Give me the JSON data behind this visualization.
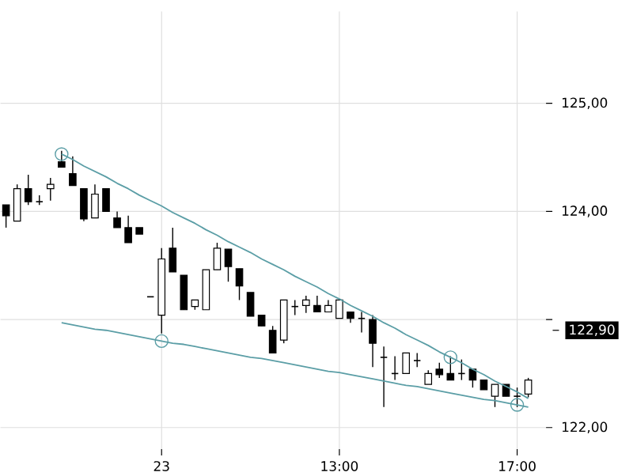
{
  "chart_data": {
    "type": "candlestick",
    "categories": [
      null,
      null,
      null,
      null,
      null,
      null,
      null,
      null,
      null,
      null,
      null,
      null,
      null,
      null,
      "23",
      null,
      null,
      null,
      null,
      null,
      null,
      null,
      null,
      null,
      null,
      null,
      null,
      null,
      null,
      null,
      "13:00",
      null,
      null,
      null,
      null,
      null,
      null,
      null,
      null,
      null,
      null,
      null,
      null,
      null,
      null,
      null,
      "17:00",
      null
    ],
    "series": [
      {
        "color": "#000000",
        "ohlc": [
          [
            124.06,
            124.06,
            123.85,
            123.96
          ],
          [
            123.91,
            124.25,
            123.91,
            124.21
          ],
          [
            124.21,
            124.34,
            124.06,
            124.09
          ],
          [
            124.09,
            124.15,
            124.06,
            124.09
          ],
          [
            124.21,
            124.31,
            124.1,
            124.25
          ],
          [
            124.46,
            124.56,
            124.41,
            124.41
          ],
          [
            124.35,
            124.51,
            124.24,
            124.24
          ],
          [
            124.21,
            124.21,
            123.91,
            123.93
          ],
          [
            123.94,
            124.25,
            123.94,
            124.16
          ],
          [
            124.21,
            124.21,
            124.0,
            124.0
          ],
          [
            123.94,
            124.0,
            123.85,
            123.85
          ],
          [
            123.85,
            123.96,
            123.71,
            123.71
          ],
          [
            123.85,
            123.85,
            123.79,
            123.79
          ],
          [
            123.21,
            123.21,
            123.21,
            123.21
          ],
          [
            123.04,
            123.66,
            122.87,
            123.56
          ],
          [
            123.66,
            123.85,
            123.44,
            123.44
          ],
          [
            123.41,
            123.41,
            123.09,
            123.09
          ],
          [
            123.12,
            123.18,
            123.09,
            123.18
          ],
          [
            123.09,
            123.46,
            123.09,
            123.46
          ],
          [
            123.46,
            123.71,
            123.46,
            123.66
          ],
          [
            123.65,
            123.65,
            123.35,
            123.49
          ],
          [
            123.47,
            123.47,
            123.18,
            123.31
          ],
          [
            123.25,
            123.25,
            123.03,
            123.03
          ],
          [
            123.04,
            123.04,
            122.94,
            122.94
          ],
          [
            122.9,
            122.94,
            122.69,
            122.69
          ],
          [
            122.81,
            123.18,
            122.78,
            123.18
          ],
          [
            123.12,
            123.18,
            123.04,
            123.12
          ],
          [
            123.13,
            123.22,
            123.06,
            123.18
          ],
          [
            123.13,
            123.22,
            123.07,
            123.07
          ],
          [
            123.07,
            123.18,
            123.07,
            123.13
          ],
          [
            123.01,
            123.18,
            123.01,
            123.18
          ],
          [
            123.07,
            123.07,
            122.97,
            123.01
          ],
          [
            123.01,
            123.07,
            122.88,
            123.01
          ],
          [
            123.0,
            123.04,
            122.56,
            122.78
          ],
          [
            122.65,
            122.75,
            122.19,
            122.65
          ],
          [
            122.5,
            122.66,
            122.44,
            122.5
          ],
          [
            122.5,
            122.69,
            122.5,
            122.69
          ],
          [
            122.62,
            122.69,
            122.56,
            122.62
          ],
          [
            122.4,
            122.53,
            122.4,
            122.5
          ],
          [
            122.54,
            122.6,
            122.46,
            122.49
          ],
          [
            122.5,
            122.66,
            122.44,
            122.44
          ],
          [
            122.5,
            122.63,
            122.44,
            122.5
          ],
          [
            122.54,
            122.54,
            122.37,
            122.44
          ],
          [
            122.44,
            122.44,
            122.35,
            122.35
          ],
          [
            122.29,
            122.4,
            122.19,
            122.4
          ],
          [
            122.4,
            122.4,
            122.29,
            122.29
          ],
          [
            122.29,
            122.37,
            122.19,
            122.29
          ],
          [
            122.31,
            122.46,
            122.28,
            122.44
          ]
        ]
      },
      {
        "type": "line",
        "color": "#5b9ea6",
        "values": [
          null,
          null,
          null,
          null,
          null,
          124.53,
          124.48,
          124.42,
          124.37,
          124.32,
          124.26,
          124.21,
          124.15,
          124.1,
          124.05,
          123.99,
          123.94,
          123.89,
          123.83,
          123.78,
          123.72,
          123.67,
          123.62,
          123.56,
          123.51,
          123.46,
          123.4,
          123.35,
          123.3,
          123.24,
          123.19,
          123.13,
          123.08,
          123.03,
          122.97,
          122.92,
          122.86,
          122.81,
          122.76,
          122.7,
          122.65,
          122.6,
          122.54,
          122.49,
          122.43,
          122.38,
          122.33,
          122.27
        ]
      },
      {
        "type": "line",
        "color": "#5b9ea6",
        "values": [
          null,
          null,
          null,
          null,
          null,
          122.97,
          122.95,
          122.93,
          122.91,
          122.9,
          122.88,
          122.86,
          122.84,
          122.82,
          122.8,
          122.78,
          122.77,
          122.75,
          122.73,
          122.71,
          122.69,
          122.67,
          122.65,
          122.64,
          122.62,
          122.6,
          122.58,
          122.56,
          122.54,
          122.52,
          122.51,
          122.49,
          122.47,
          122.45,
          122.43,
          122.41,
          122.39,
          122.38,
          122.36,
          122.34,
          122.32,
          122.3,
          122.28,
          122.26,
          122.25,
          122.23,
          122.21,
          122.19
        ]
      },
      {
        "type": "scatter",
        "color": "#5b9ea6",
        "marker": "circle",
        "values": [
          null,
          null,
          null,
          null,
          null,
          124.53,
          null,
          null,
          null,
          null,
          null,
          null,
          null,
          null,
          122.8,
          null,
          null,
          null,
          null,
          null,
          null,
          null,
          null,
          null,
          null,
          null,
          null,
          null,
          null,
          null,
          null,
          null,
          null,
          null,
          null,
          null,
          null,
          null,
          null,
          null,
          122.65,
          null,
          null,
          null,
          null,
          null,
          122.21,
          null
        ]
      }
    ],
    "ylim": [
      121.8,
      125.85
    ],
    "yticks": [
      {
        "value": 122,
        "label": "122,00"
      },
      {
        "value": 123,
        "label": null
      },
      {
        "value": 124,
        "label": "124,00"
      },
      {
        "value": 125,
        "label": "125,00"
      }
    ],
    "ref_lines": [
      {
        "axis": "y",
        "value": 122.9,
        "label": "122,90",
        "color": "#000000"
      }
    ],
    "grid": true
  }
}
